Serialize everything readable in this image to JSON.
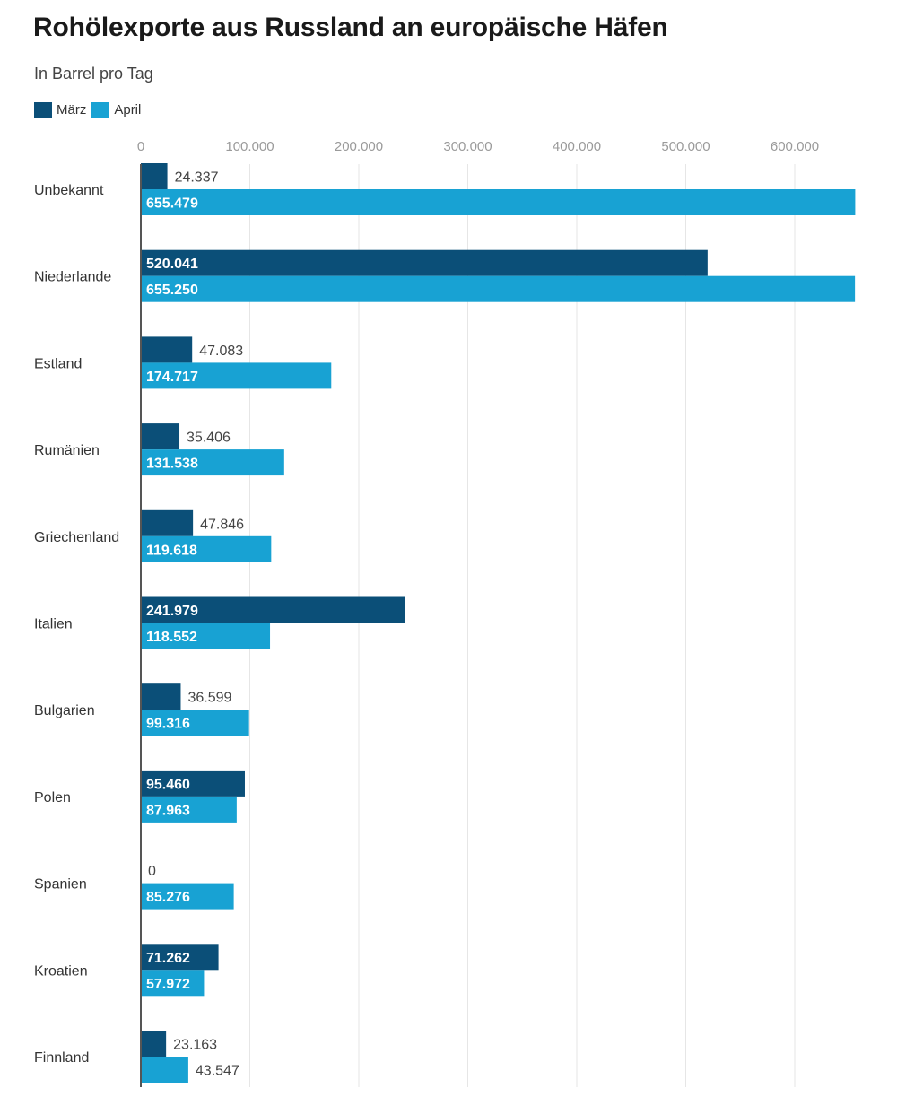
{
  "chart_data": {
    "type": "bar",
    "orientation": "horizontal",
    "title": "Rohölexporte aus Russland an europäische Häfen",
    "subtitle": "In Barrel pro Tag",
    "xlim": [
      0,
      655479
    ],
    "x_ticks": [
      0,
      100000,
      200000,
      300000,
      400000,
      500000,
      600000
    ],
    "x_tick_labels": [
      "0",
      "100.000",
      "200.000",
      "300.000",
      "400.000",
      "500.000",
      "600.000"
    ],
    "grid": true,
    "legend_position": "top-left",
    "categories": [
      "Unbekannt",
      "Niederlande",
      "Estland",
      "Rumänien",
      "Griechenland",
      "Italien",
      "Bulgarien",
      "Polen",
      "Spanien",
      "Kroatien",
      "Finnland"
    ],
    "series": [
      {
        "name": "März",
        "color": "#0b4f78",
        "values": [
          24337,
          520041,
          47083,
          35406,
          47846,
          241979,
          36599,
          95460,
          0,
          71262,
          23163
        ],
        "labels": [
          "24.337",
          "520.041",
          "47.083",
          "35.406",
          "47.846",
          "241.979",
          "36.599",
          "95.460",
          "0",
          "71.262",
          "23.163"
        ]
      },
      {
        "name": "April",
        "color": "#18a2d3",
        "values": [
          655479,
          655250,
          174717,
          131538,
          119618,
          118552,
          99316,
          87963,
          85276,
          57972,
          43547
        ],
        "labels": [
          "655.479",
          "655.250",
          "174.717",
          "131.538",
          "119.618",
          "118.552",
          "99.316",
          "87.963",
          "85.276",
          "57.972",
          "43.547"
        ]
      }
    ]
  }
}
